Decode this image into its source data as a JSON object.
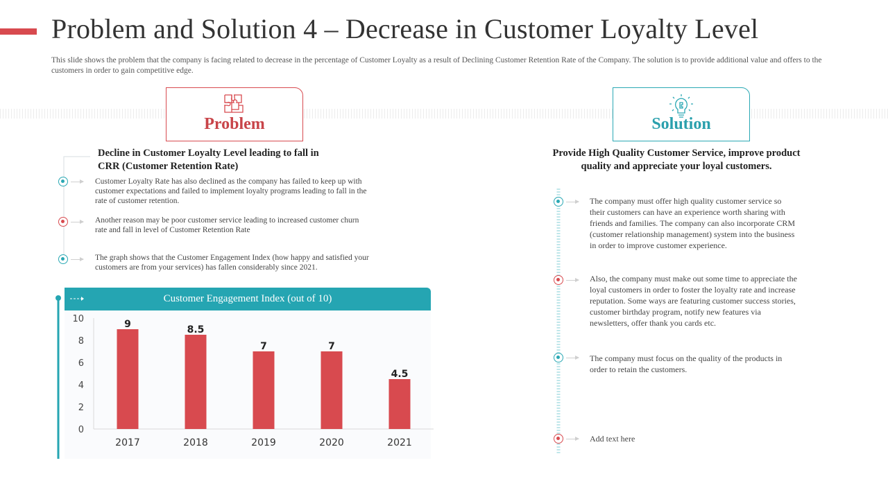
{
  "slide": {
    "title": "Problem and Solution 4 – Decrease in Customer Loyalty Level",
    "description": "This slide shows the problem that the company is facing related to decrease in the percentage  of Customer Loyalty as a result of Declining Customer Retention  Rate of the Company.  The solution is to provide additional  value and  offers to the customers in order to gain competitive edge."
  },
  "problem": {
    "label": "Problem",
    "icon": "puzzle-icon",
    "subheading": "Decline in Customer Loyalty Level leading to fall in CRR (Customer Retention Rate)",
    "points": [
      "Customer Loyalty Rate has also declined as the company has failed to keep up with customer expectations and failed to implement loyalty programs leading to fall in the rate of customer retention.",
      "Another reason may be poor customer service leading to increased customer churn rate and fall in level of Customer Retention Rate",
      "The graph shows that the Customer Engagement Index (how happy and satisfied your customers are from your services) has fallen considerably since 2021."
    ]
  },
  "solution": {
    "label": "Solution",
    "icon": "lightbulb-puzzle-icon",
    "subheading": "Provide High Quality Customer Service, improve product quality and appreciate your loyal customers.",
    "points": [
      "The company must offer high quality customer service so their customers can have an experience worth sharing with friends and families. The company can also incorporate CRM (customer relationship management)  system into the business in order to improve customer experience.",
      "Also, the company must make out some time to appreciate the loyal customers in order to foster the loyalty rate and increase reputation.  Some ways are featuring  customer  success stories, customer birthday  program,  notify new features via newsletters,  offer thank  you cards etc.",
      "The company must focus on the quality of the products in order to retain  the customers.",
      "Add text here"
    ]
  },
  "colors": {
    "red": "#d84a4f",
    "teal": "#25a5b2"
  },
  "chart_data": {
    "type": "bar",
    "title": "Customer Engagement Index (out of 10)",
    "categories": [
      "2017",
      "2018",
      "2019",
      "2020",
      "2021"
    ],
    "values": [
      9,
      8.5,
      7,
      7,
      4.5
    ],
    "value_labels": [
      "9",
      "8.5",
      "7",
      "7",
      "4.5"
    ],
    "yticks": [
      "0",
      "2",
      "4",
      "6",
      "8",
      "10"
    ],
    "ylim": [
      0,
      10
    ],
    "bar_color": "#d84a4f",
    "grid": false
  }
}
